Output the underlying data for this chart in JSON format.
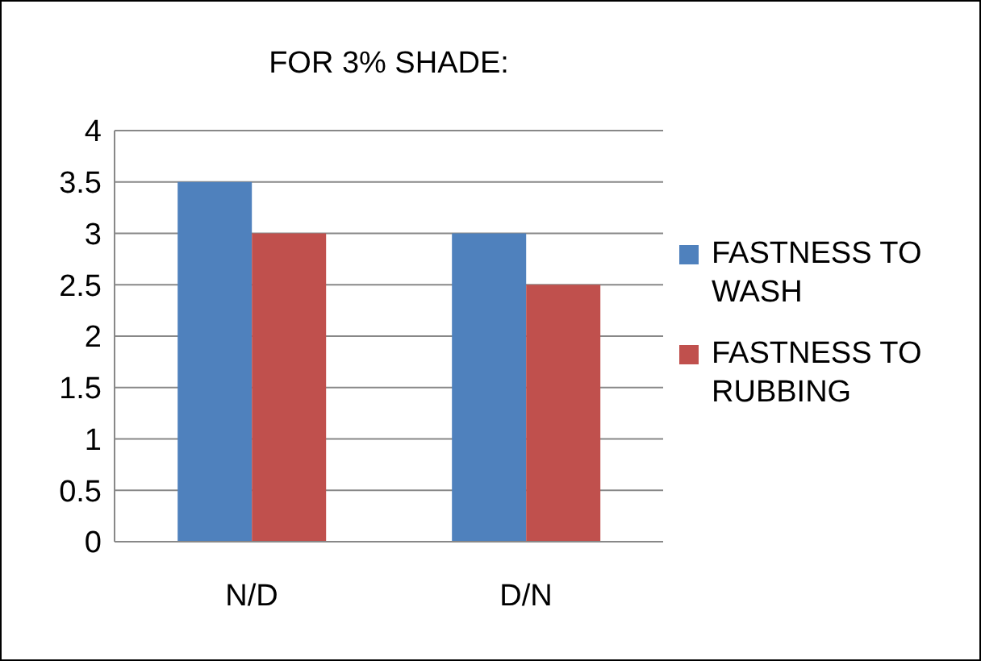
{
  "chart_data": {
    "type": "bar",
    "title": "FOR 3% SHADE:",
    "categories": [
      "N/D",
      "D/N"
    ],
    "series": [
      {
        "name": "FASTNESS TO WASH",
        "color": "#4f81bd",
        "values": [
          3.5,
          3
        ]
      },
      {
        "name": "FASTNESS TO RUBBING",
        "color": "#c0504d",
        "values": [
          3,
          2.5
        ]
      }
    ],
    "ylim": [
      0,
      4
    ],
    "yticks": [
      0,
      0.5,
      1,
      1.5,
      2,
      2.5,
      3,
      3.5,
      4
    ],
    "grid": "y",
    "legend": "right"
  }
}
